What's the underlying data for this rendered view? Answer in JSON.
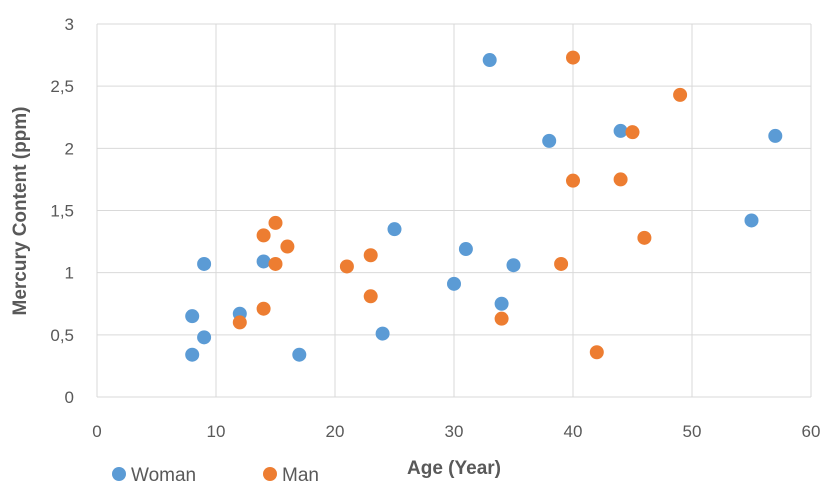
{
  "chart_data": {
    "type": "scatter",
    "title": "",
    "xlabel": "Age (Year)",
    "ylabel": "Mercury Content (ppm)",
    "xlim": [
      0,
      60
    ],
    "ylim": [
      0,
      3
    ],
    "x_ticks": [
      0,
      10,
      20,
      30,
      40,
      50,
      60
    ],
    "x_tick_labels": [
      "0",
      "10",
      "20",
      "30",
      "40",
      "50",
      "60"
    ],
    "y_ticks": [
      0,
      0.5,
      1,
      1.5,
      2,
      2.5,
      3
    ],
    "y_tick_labels": [
      "0",
      "0,5",
      "1",
      "1,5",
      "2",
      "2,5",
      "3"
    ],
    "grid": true,
    "legend_position": "bottom-left",
    "series": [
      {
        "name": "Woman",
        "color": "#5b9bd5",
        "points": [
          {
            "x": 8,
            "y": 0.34
          },
          {
            "x": 8,
            "y": 0.65
          },
          {
            "x": 9,
            "y": 0.48
          },
          {
            "x": 9,
            "y": 1.07
          },
          {
            "x": 12,
            "y": 0.67
          },
          {
            "x": 14,
            "y": 1.09
          },
          {
            "x": 17,
            "y": 0.34
          },
          {
            "x": 24,
            "y": 0.51
          },
          {
            "x": 25,
            "y": 1.35
          },
          {
            "x": 30,
            "y": 0.91
          },
          {
            "x": 31,
            "y": 1.19
          },
          {
            "x": 33,
            "y": 2.71
          },
          {
            "x": 34,
            "y": 0.75
          },
          {
            "x": 35,
            "y": 1.06
          },
          {
            "x": 38,
            "y": 2.06
          },
          {
            "x": 44,
            "y": 2.14
          },
          {
            "x": 55,
            "y": 1.42
          },
          {
            "x": 57,
            "y": 2.1
          }
        ]
      },
      {
        "name": "Man",
        "color": "#ed7d31",
        "points": [
          {
            "x": 12,
            "y": 0.6
          },
          {
            "x": 14,
            "y": 0.71
          },
          {
            "x": 14,
            "y": 1.3
          },
          {
            "x": 15,
            "y": 1.4
          },
          {
            "x": 15,
            "y": 1.07
          },
          {
            "x": 16,
            "y": 1.21
          },
          {
            "x": 21,
            "y": 1.05
          },
          {
            "x": 23,
            "y": 1.14
          },
          {
            "x": 23,
            "y": 0.81
          },
          {
            "x": 34,
            "y": 0.63
          },
          {
            "x": 39,
            "y": 1.07
          },
          {
            "x": 40,
            "y": 2.73
          },
          {
            "x": 40,
            "y": 1.74
          },
          {
            "x": 42,
            "y": 0.36
          },
          {
            "x": 44,
            "y": 1.75
          },
          {
            "x": 45,
            "y": 2.13
          },
          {
            "x": 46,
            "y": 1.28
          },
          {
            "x": 49,
            "y": 2.43
          }
        ]
      }
    ]
  }
}
